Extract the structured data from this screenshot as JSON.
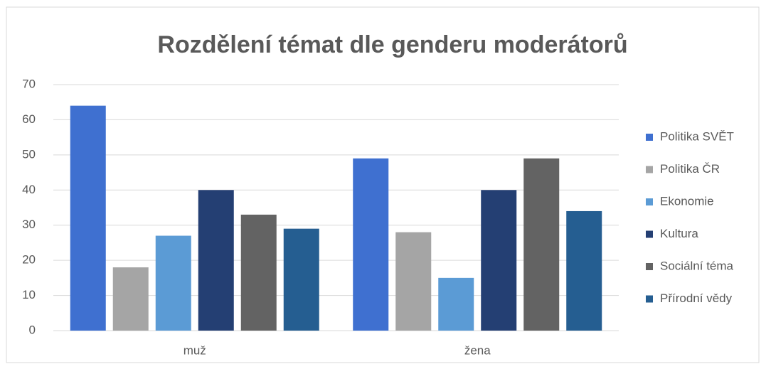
{
  "chart_data": {
    "type": "bar",
    "title": "Rozdělení témat dle genderu moderátorů",
    "categories": [
      "muž",
      "žena"
    ],
    "series": [
      {
        "name": "Politika SVĚT",
        "color": "#3f70d0",
        "values": [
          64,
          49
        ]
      },
      {
        "name": "Politika ČR",
        "color": "#a5a5a5",
        "values": [
          18,
          28
        ]
      },
      {
        "name": "Ekonomie",
        "color": "#5b9bd5",
        "values": [
          27,
          15
        ]
      },
      {
        "name": "Kultura",
        "color": "#243f73",
        "values": [
          40,
          40
        ]
      },
      {
        "name": "Sociální téma",
        "color": "#636363",
        "values": [
          33,
          49
        ]
      },
      {
        "name": "Přírodní vědy",
        "color": "#255e91",
        "values": [
          29,
          34
        ]
      }
    ],
    "ylim": [
      0,
      70
    ],
    "yticks": [
      0,
      10,
      20,
      30,
      40,
      50,
      60,
      70
    ],
    "grid": true,
    "legend": "right"
  }
}
